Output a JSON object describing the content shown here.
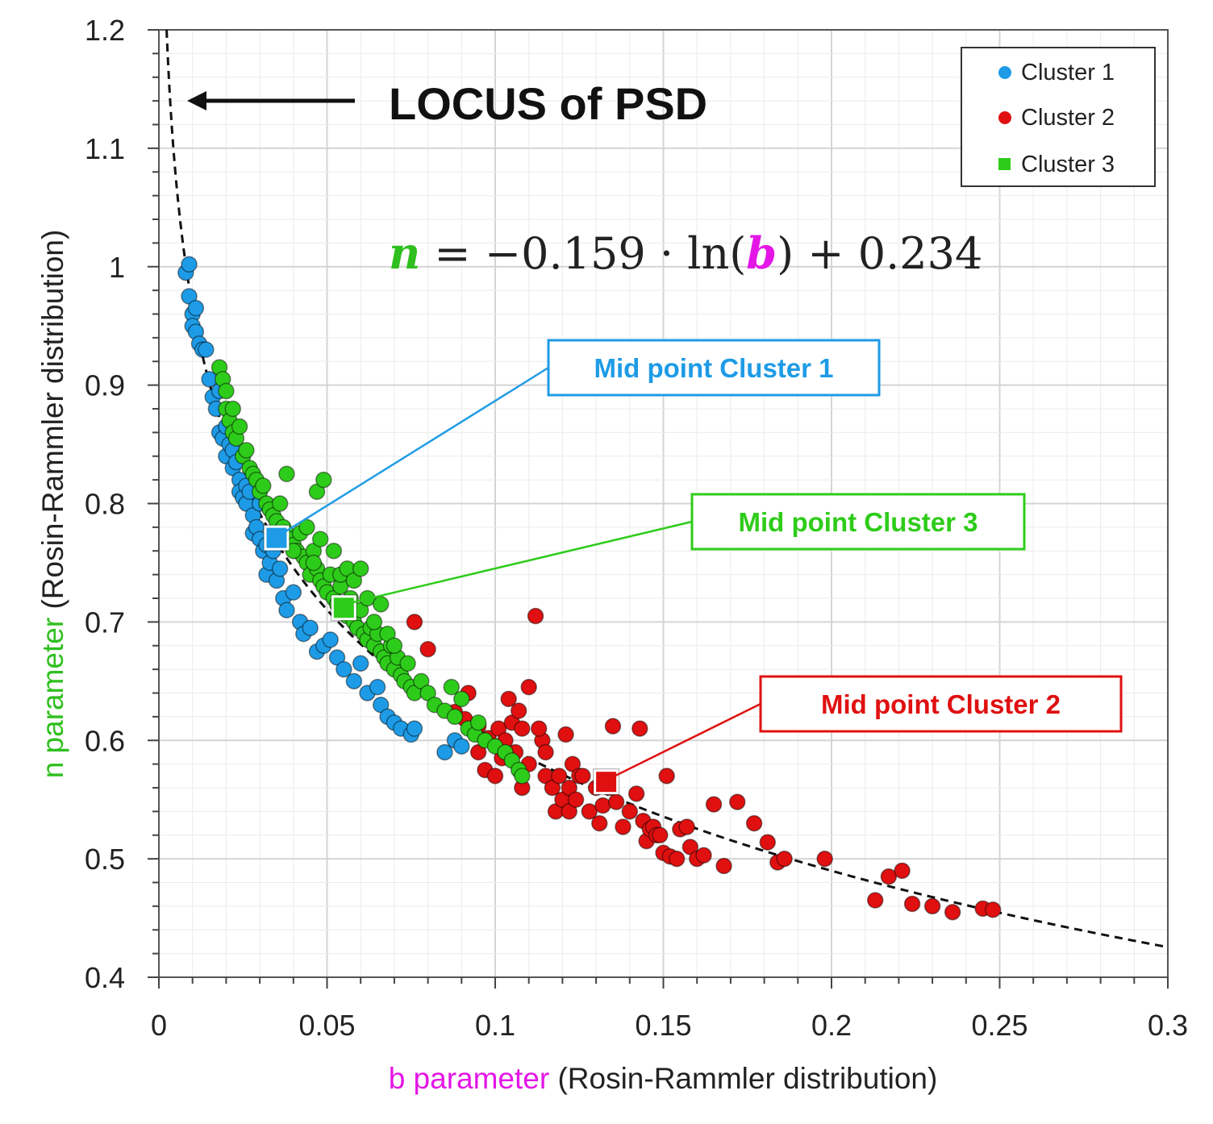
{
  "chart_data": {
    "type": "scatter",
    "title": "",
    "xlabel": {
      "colored": "b parameter",
      "rest": " (Rosin-Rammler distribution)"
    },
    "ylabel": {
      "colored": "n parameter",
      "rest": " (Rosin-Rammler distribution)"
    },
    "xlim": [
      0,
      0.3
    ],
    "ylim": [
      0.4,
      1.2
    ],
    "x_ticks": [
      "0",
      "0.05",
      "0.1",
      "0.15",
      "0.2",
      "0.25",
      "0.3"
    ],
    "y_ticks": [
      "0.4",
      "0.5",
      "0.6",
      "0.7",
      "0.8",
      "0.9",
      "1",
      "1.1",
      "1.2"
    ],
    "grid": true,
    "legend": {
      "position": "top-right"
    },
    "colors": {
      "cluster1": "#1e9be6",
      "cluster2": "#e01010",
      "cluster3": "#2ecc1a",
      "b_label": "#e316e6",
      "n_label": "#2fbf1e"
    },
    "locus_label": "LOCUS of PSD",
    "equation": {
      "lhs": "n",
      "mid": " = −0.159 · ln(",
      "var": "b",
      "rhs": ") + 0.234"
    },
    "fit_curve": {
      "a": -0.159,
      "c": 0.234,
      "style": "dashed"
    },
    "series": [
      {
        "name": "Cluster 1",
        "color": "#1e9be6",
        "x": [
          0.008,
          0.009,
          0.009,
          0.01,
          0.01,
          0.011,
          0.011,
          0.012,
          0.013,
          0.014,
          0.015,
          0.016,
          0.017,
          0.018,
          0.018,
          0.019,
          0.02,
          0.02,
          0.021,
          0.022,
          0.022,
          0.023,
          0.024,
          0.024,
          0.025,
          0.026,
          0.026,
          0.027,
          0.028,
          0.028,
          0.029,
          0.03,
          0.03,
          0.031,
          0.032,
          0.032,
          0.033,
          0.034,
          0.035,
          0.036,
          0.037,
          0.038,
          0.04,
          0.042,
          0.043,
          0.045,
          0.047,
          0.049,
          0.051,
          0.053,
          0.055,
          0.058,
          0.06,
          0.062,
          0.065,
          0.066,
          0.068,
          0.07,
          0.072,
          0.075,
          0.076,
          0.085,
          0.088,
          0.09
        ],
        "y": [
          0.995,
          1.002,
          0.975,
          0.96,
          0.95,
          0.965,
          0.945,
          0.935,
          0.93,
          0.93,
          0.905,
          0.89,
          0.88,
          0.895,
          0.86,
          0.855,
          0.865,
          0.84,
          0.85,
          0.845,
          0.83,
          0.835,
          0.82,
          0.81,
          0.805,
          0.815,
          0.8,
          0.81,
          0.79,
          0.775,
          0.78,
          0.77,
          0.8,
          0.76,
          0.765,
          0.74,
          0.75,
          0.76,
          0.735,
          0.745,
          0.72,
          0.71,
          0.725,
          0.7,
          0.69,
          0.695,
          0.675,
          0.68,
          0.685,
          0.67,
          0.66,
          0.65,
          0.665,
          0.64,
          0.645,
          0.63,
          0.62,
          0.615,
          0.61,
          0.605,
          0.61,
          0.59,
          0.6,
          0.595
        ]
      },
      {
        "name": "Cluster 2",
        "color": "#e01010",
        "x": [
          0.076,
          0.08,
          0.088,
          0.092,
          0.095,
          0.097,
          0.098,
          0.1,
          0.101,
          0.102,
          0.103,
          0.104,
          0.105,
          0.106,
          0.107,
          0.108,
          0.108,
          0.11,
          0.11,
          0.112,
          0.114,
          0.115,
          0.115,
          0.117,
          0.118,
          0.119,
          0.12,
          0.121,
          0.122,
          0.122,
          0.123,
          0.124,
          0.125,
          0.126,
          0.128,
          0.13,
          0.131,
          0.132,
          0.134,
          0.135,
          0.136,
          0.138,
          0.14,
          0.142,
          0.143,
          0.144,
          0.145,
          0.146,
          0.147,
          0.148,
          0.149,
          0.15,
          0.151,
          0.152,
          0.154,
          0.155,
          0.157,
          0.158,
          0.16,
          0.162,
          0.165,
          0.168,
          0.172,
          0.177,
          0.181,
          0.184,
          0.186,
          0.198,
          0.213,
          0.217,
          0.221,
          0.224,
          0.23,
          0.236,
          0.245,
          0.248,
          0.113,
          0.091,
          0.095
        ],
        "y": [
          0.7,
          0.677,
          0.624,
          0.64,
          0.612,
          0.575,
          0.602,
          0.57,
          0.61,
          0.585,
          0.6,
          0.635,
          0.615,
          0.59,
          0.625,
          0.61,
          0.56,
          0.645,
          0.58,
          0.705,
          0.6,
          0.59,
          0.57,
          0.56,
          0.54,
          0.57,
          0.55,
          0.605,
          0.56,
          0.54,
          0.58,
          0.55,
          0.57,
          0.57,
          0.54,
          0.56,
          0.53,
          0.545,
          0.56,
          0.612,
          0.548,
          0.527,
          0.54,
          0.555,
          0.61,
          0.532,
          0.515,
          0.525,
          0.527,
          0.52,
          0.52,
          0.505,
          0.57,
          0.502,
          0.5,
          0.525,
          0.527,
          0.51,
          0.5,
          0.503,
          0.546,
          0.494,
          0.548,
          0.53,
          0.514,
          0.497,
          0.5,
          0.5,
          0.465,
          0.485,
          0.49,
          0.462,
          0.46,
          0.455,
          0.458,
          0.457,
          0.61,
          0.618,
          0.59
        ],
        "mid_point": {
          "x": 0.133,
          "y": 0.565,
          "label": "Mid point Cluster 2"
        }
      },
      {
        "name": "Cluster 3",
        "color": "#2ecc1a",
        "x": [
          0.018,
          0.019,
          0.02,
          0.02,
          0.021,
          0.022,
          0.022,
          0.023,
          0.024,
          0.025,
          0.026,
          0.027,
          0.028,
          0.029,
          0.03,
          0.031,
          0.032,
          0.033,
          0.034,
          0.035,
          0.036,
          0.037,
          0.038,
          0.039,
          0.04,
          0.041,
          0.042,
          0.043,
          0.044,
          0.045,
          0.046,
          0.047,
          0.048,
          0.049,
          0.05,
          0.051,
          0.052,
          0.053,
          0.054,
          0.055,
          0.056,
          0.057,
          0.058,
          0.059,
          0.06,
          0.061,
          0.062,
          0.063,
          0.064,
          0.065,
          0.066,
          0.067,
          0.068,
          0.069,
          0.07,
          0.071,
          0.072,
          0.073,
          0.074,
          0.075,
          0.076,
          0.078,
          0.08,
          0.082,
          0.085,
          0.087,
          0.088,
          0.09,
          0.092,
          0.094,
          0.095,
          0.097,
          0.1,
          0.103,
          0.105,
          0.107,
          0.108,
          0.04,
          0.044,
          0.046,
          0.048,
          0.052,
          0.054,
          0.056,
          0.058,
          0.06,
          0.062,
          0.064,
          0.066,
          0.068,
          0.07,
          0.047,
          0.049,
          0.038
        ],
        "y": [
          0.915,
          0.905,
          0.88,
          0.895,
          0.87,
          0.86,
          0.88,
          0.855,
          0.865,
          0.84,
          0.845,
          0.83,
          0.825,
          0.82,
          0.81,
          0.815,
          0.8,
          0.795,
          0.79,
          0.785,
          0.8,
          0.78,
          0.775,
          0.77,
          0.765,
          0.76,
          0.775,
          0.755,
          0.75,
          0.74,
          0.76,
          0.745,
          0.735,
          0.73,
          0.725,
          0.74,
          0.72,
          0.715,
          0.73,
          0.71,
          0.705,
          0.72,
          0.7,
          0.695,
          0.71,
          0.69,
          0.685,
          0.695,
          0.68,
          0.69,
          0.675,
          0.67,
          0.665,
          0.68,
          0.66,
          0.67,
          0.655,
          0.65,
          0.665,
          0.645,
          0.64,
          0.65,
          0.64,
          0.63,
          0.625,
          0.645,
          0.62,
          0.635,
          0.61,
          0.605,
          0.615,
          0.6,
          0.595,
          0.59,
          0.583,
          0.575,
          0.57,
          0.76,
          0.78,
          0.75,
          0.77,
          0.76,
          0.74,
          0.745,
          0.735,
          0.745,
          0.72,
          0.7,
          0.715,
          0.69,
          0.68,
          0.81,
          0.82,
          0.825
        ],
        "mid_point": {
          "x": 0.055,
          "y": 0.712,
          "label": "Mid point Cluster 3"
        }
      }
    ],
    "cluster1_mid_point": {
      "x": 0.035,
      "y": 0.771,
      "label": "Mid point Cluster 1"
    }
  }
}
